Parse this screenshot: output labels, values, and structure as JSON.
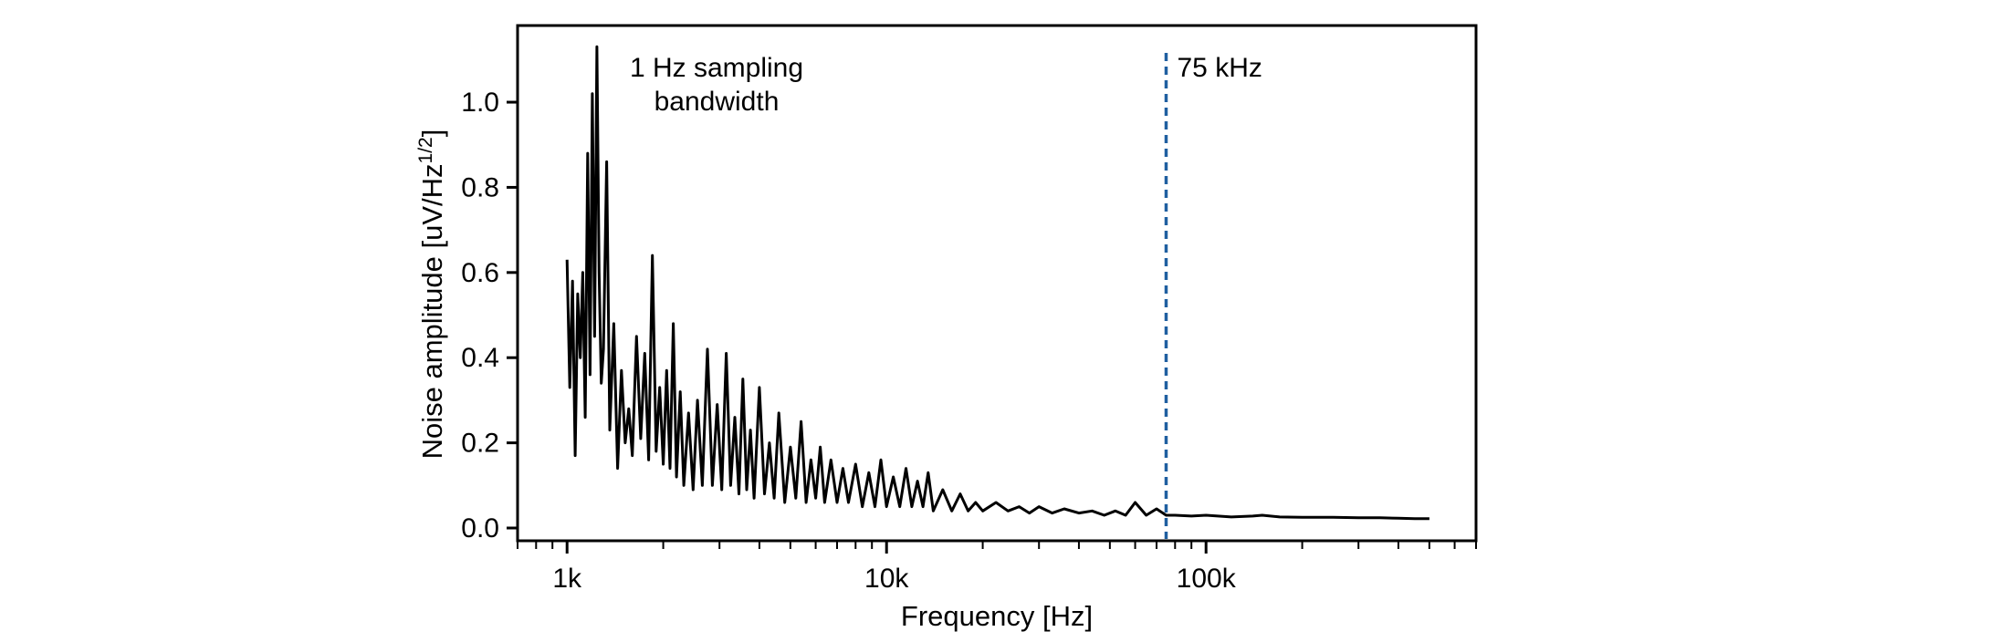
{
  "chart_data": {
    "type": "line",
    "xlabel": "Frequency [Hz]",
    "ylabel": {
      "main": "Noise amplitude [uV/Hz",
      "superscript": "1/2",
      "suffix": "]"
    },
    "x_scale": "log",
    "xlim": [
      700,
      700000
    ],
    "ylim": [
      -0.03,
      1.18
    ],
    "x_ticks": [
      {
        "value": 1000,
        "label": "1k"
      },
      {
        "value": 10000,
        "label": "10k"
      },
      {
        "value": 100000,
        "label": "100k"
      }
    ],
    "y_ticks": [
      {
        "value": 0.0,
        "label": "0.0"
      },
      {
        "value": 0.2,
        "label": "0.2"
      },
      {
        "value": 0.4,
        "label": "0.4"
      },
      {
        "value": 0.6,
        "label": "0.6"
      },
      {
        "value": 0.8,
        "label": "0.8"
      },
      {
        "value": 1.0,
        "label": "1.0"
      }
    ],
    "annotations": {
      "bandwidth_line1": "1 Hz sampling",
      "bandwidth_line2": "bandwidth",
      "cutoff_label": "75 kHz"
    },
    "cutoff_frequency": 75000,
    "colors": {
      "series": "#000000",
      "cutoff_line": "#1f5fa0",
      "axes": "#000000"
    },
    "series": [
      {
        "x": [
          1000,
          1020,
          1040,
          1060,
          1080,
          1100,
          1120,
          1140,
          1160,
          1180,
          1200,
          1220,
          1240,
          1260,
          1280,
          1300,
          1330,
          1360,
          1400,
          1440,
          1480,
          1520,
          1560,
          1600,
          1650,
          1700,
          1750,
          1800,
          1850,
          1900,
          1950,
          2000,
          2050,
          2100,
          2150,
          2200,
          2260,
          2320,
          2400,
          2480,
          2560,
          2650,
          2750,
          2850,
          2950,
          3050,
          3150,
          3250,
          3350,
          3450,
          3550,
          3650,
          3750,
          3850,
          4000,
          4150,
          4300,
          4450,
          4600,
          4800,
          5000,
          5200,
          5400,
          5600,
          5800,
          6000,
          6200,
          6400,
          6700,
          7000,
          7300,
          7600,
          8000,
          8400,
          8800,
          9200,
          9600,
          10000,
          10500,
          11000,
          11500,
          12000,
          12500,
          13000,
          13500,
          14000,
          15000,
          16000,
          17000,
          18000,
          19000,
          20000,
          22000,
          24000,
          26000,
          28000,
          30000,
          33000,
          36000,
          40000,
          44000,
          48000,
          52000,
          56000,
          60000,
          65000,
          70000,
          75000,
          80000,
          90000,
          100000,
          120000,
          140000,
          150000,
          170000,
          200000,
          250000,
          300000,
          350000,
          400000,
          450000,
          500000
        ],
        "values": [
          0.63,
          0.33,
          0.58,
          0.17,
          0.55,
          0.4,
          0.6,
          0.26,
          0.88,
          0.36,
          1.02,
          0.45,
          1.13,
          0.6,
          0.34,
          0.42,
          0.86,
          0.23,
          0.48,
          0.14,
          0.37,
          0.2,
          0.28,
          0.17,
          0.45,
          0.21,
          0.41,
          0.16,
          0.64,
          0.18,
          0.33,
          0.15,
          0.37,
          0.14,
          0.48,
          0.12,
          0.32,
          0.1,
          0.27,
          0.09,
          0.3,
          0.1,
          0.42,
          0.1,
          0.29,
          0.09,
          0.41,
          0.1,
          0.26,
          0.08,
          0.35,
          0.09,
          0.23,
          0.07,
          0.33,
          0.08,
          0.2,
          0.07,
          0.27,
          0.06,
          0.19,
          0.07,
          0.25,
          0.06,
          0.16,
          0.07,
          0.19,
          0.06,
          0.16,
          0.06,
          0.14,
          0.06,
          0.15,
          0.05,
          0.13,
          0.05,
          0.16,
          0.05,
          0.12,
          0.05,
          0.14,
          0.05,
          0.11,
          0.05,
          0.13,
          0.04,
          0.09,
          0.04,
          0.08,
          0.04,
          0.06,
          0.04,
          0.06,
          0.04,
          0.05,
          0.035,
          0.05,
          0.035,
          0.045,
          0.035,
          0.04,
          0.03,
          0.04,
          0.03,
          0.06,
          0.03,
          0.045,
          0.03,
          0.03,
          0.028,
          0.03,
          0.026,
          0.028,
          0.03,
          0.026,
          0.025,
          0.025,
          0.024,
          0.024,
          0.023,
          0.022,
          0.022
        ]
      }
    ]
  }
}
